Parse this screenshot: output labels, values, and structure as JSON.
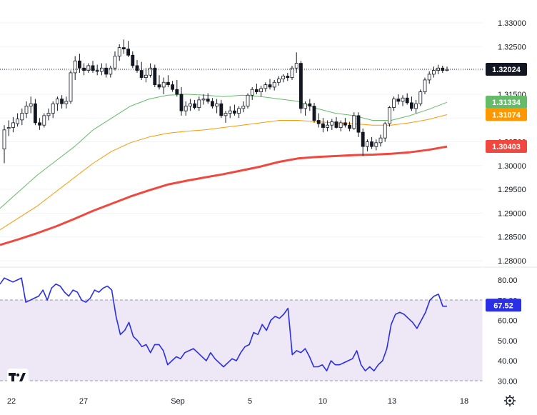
{
  "chart_data": [
    {
      "type": "candlestick",
      "panel": "price",
      "x": [
        "Aug 22",
        "Aug 27",
        "Sep 1",
        "Sep 5",
        "Sep 10",
        "Sep 13",
        "Sep 18"
      ],
      "x_tick_labels": [
        "22",
        "27",
        "Sep",
        "5",
        "10",
        "13",
        "18"
      ],
      "y_tick_labels": [
        "1.33000",
        "1.32500",
        "1.32000",
        "1.31500",
        "1.31000",
        "1.30500",
        "1.30000",
        "1.29500",
        "1.29000",
        "1.28500",
        "1.28000"
      ],
      "ylim": [
        1.2795,
        1.3325
      ],
      "last_price": 1.32024,
      "ohlc": [
        [
          1.3035,
          1.3085,
          1.3005,
          1.3075
        ],
        [
          1.3078,
          1.3095,
          1.3062,
          1.308
        ],
        [
          1.308,
          1.3102,
          1.307,
          1.309
        ],
        [
          1.3088,
          1.311,
          1.3082,
          1.3098
        ],
        [
          1.3096,
          1.312,
          1.3085,
          1.311
        ],
        [
          1.311,
          1.3135,
          1.31,
          1.3125
        ],
        [
          1.3125,
          1.3145,
          1.311,
          1.313
        ],
        [
          1.313,
          1.314,
          1.3085,
          1.309
        ],
        [
          1.309,
          1.31,
          1.3075,
          1.3085
        ],
        [
          1.3085,
          1.311,
          1.308,
          1.3105
        ],
        [
          1.3105,
          1.312,
          1.3095,
          1.311
        ],
        [
          1.311,
          1.3135,
          1.31,
          1.313
        ],
        [
          1.313,
          1.3145,
          1.3115,
          1.314
        ],
        [
          1.314,
          1.3148,
          1.312,
          1.313
        ],
        [
          1.313,
          1.3145,
          1.312,
          1.3135
        ],
        [
          1.3135,
          1.32,
          1.313,
          1.3195
        ],
        [
          1.3195,
          1.323,
          1.318,
          1.322
        ],
        [
          1.322,
          1.3235,
          1.3195,
          1.3205
        ],
        [
          1.3205,
          1.3215,
          1.319,
          1.32
        ],
        [
          1.32,
          1.3215,
          1.3195,
          1.321
        ],
        [
          1.321,
          1.322,
          1.3195,
          1.32
        ],
        [
          1.32,
          1.3212,
          1.319,
          1.3198
        ],
        [
          1.3198,
          1.3215,
          1.319,
          1.3205
        ],
        [
          1.3205,
          1.3215,
          1.3185,
          1.3192
        ],
        [
          1.3192,
          1.321,
          1.3185,
          1.3205
        ],
        [
          1.3205,
          1.324,
          1.32,
          1.323
        ],
        [
          1.323,
          1.3255,
          1.322,
          1.3248
        ],
        [
          1.3248,
          1.3265,
          1.3235,
          1.3245
        ],
        [
          1.3245,
          1.3262,
          1.3228,
          1.3232
        ],
        [
          1.3232,
          1.324,
          1.3205,
          1.321
        ],
        [
          1.321,
          1.3222,
          1.3195,
          1.32
        ],
        [
          1.32,
          1.3218,
          1.318,
          1.3185
        ],
        [
          1.3185,
          1.3205,
          1.3175,
          1.319
        ],
        [
          1.319,
          1.3215,
          1.3185,
          1.3205
        ],
        [
          1.3205,
          1.3212,
          1.3165,
          1.317
        ],
        [
          1.317,
          1.319,
          1.316,
          1.3165
        ],
        [
          1.3165,
          1.3185,
          1.315,
          1.3175
        ],
        [
          1.3175,
          1.319,
          1.3165,
          1.317
        ],
        [
          1.317,
          1.3178,
          1.3155,
          1.316
        ],
        [
          1.316,
          1.318,
          1.3145,
          1.315
        ],
        [
          1.315,
          1.3165,
          1.3105,
          1.3115
        ],
        [
          1.3115,
          1.3135,
          1.3105,
          1.3125
        ],
        [
          1.3125,
          1.314,
          1.3115,
          1.313
        ],
        [
          1.313,
          1.3138,
          1.3118,
          1.3122
        ],
        [
          1.3122,
          1.3145,
          1.3115,
          1.3138
        ],
        [
          1.3138,
          1.315,
          1.3128,
          1.314
        ],
        [
          1.314,
          1.3152,
          1.313,
          1.3135
        ],
        [
          1.3135,
          1.3142,
          1.312,
          1.3125
        ],
        [
          1.3125,
          1.314,
          1.311,
          1.313
        ],
        [
          1.313,
          1.3138,
          1.31,
          1.3105
        ],
        [
          1.3105,
          1.3115,
          1.309,
          1.311
        ],
        [
          1.311,
          1.3125,
          1.31,
          1.3115
        ],
        [
          1.3115,
          1.3128,
          1.3105,
          1.311
        ],
        [
          1.311,
          1.3125,
          1.31,
          1.312
        ],
        [
          1.312,
          1.3135,
          1.3112,
          1.3125
        ],
        [
          1.3125,
          1.3152,
          1.312,
          1.3148
        ],
        [
          1.3148,
          1.3165,
          1.3138,
          1.316
        ],
        [
          1.316,
          1.3172,
          1.315,
          1.3155
        ],
        [
          1.3155,
          1.3168,
          1.3145,
          1.3162
        ],
        [
          1.3162,
          1.3175,
          1.3155,
          1.317
        ],
        [
          1.317,
          1.3182,
          1.316,
          1.3165
        ],
        [
          1.3165,
          1.318,
          1.3158,
          1.3175
        ],
        [
          1.3175,
          1.3188,
          1.3168,
          1.3182
        ],
        [
          1.3182,
          1.3192,
          1.3175,
          1.3188
        ],
        [
          1.3188,
          1.3195,
          1.3178,
          1.3185
        ],
        [
          1.3185,
          1.321,
          1.318,
          1.3205
        ],
        [
          1.3205,
          1.3238,
          1.3195,
          1.3215
        ],
        [
          1.3215,
          1.322,
          1.311,
          1.312
        ],
        [
          1.312,
          1.3135,
          1.3105,
          1.313
        ],
        [
          1.313,
          1.314,
          1.3115,
          1.3125
        ],
        [
          1.3125,
          1.3132,
          1.309,
          1.3095
        ],
        [
          1.3095,
          1.311,
          1.308,
          1.3088
        ],
        [
          1.3088,
          1.31,
          1.307,
          1.308
        ],
        [
          1.308,
          1.3095,
          1.3072,
          1.3085
        ],
        [
          1.3085,
          1.3098,
          1.3075,
          1.3092
        ],
        [
          1.3092,
          1.3102,
          1.3078,
          1.308
        ],
        [
          1.308,
          1.3095,
          1.3072,
          1.309
        ],
        [
          1.309,
          1.31,
          1.308,
          1.3085
        ],
        [
          1.3085,
          1.3092,
          1.3072,
          1.3078
        ],
        [
          1.3078,
          1.3112,
          1.3075,
          1.3105
        ],
        [
          1.3105,
          1.3112,
          1.306,
          1.307
        ],
        [
          1.307,
          1.3078,
          1.302,
          1.304
        ],
        [
          1.304,
          1.3055,
          1.303,
          1.305
        ],
        [
          1.305,
          1.306,
          1.3035,
          1.304
        ],
        [
          1.304,
          1.3055,
          1.3032,
          1.3048
        ],
        [
          1.3048,
          1.3065,
          1.304,
          1.3058
        ],
        [
          1.3058,
          1.3092,
          1.305,
          1.3088
        ],
        [
          1.3088,
          1.3125,
          1.3082,
          1.3122
        ],
        [
          1.3122,
          1.3145,
          1.3115,
          1.314
        ],
        [
          1.314,
          1.315,
          1.3128,
          1.3135
        ],
        [
          1.3135,
          1.3148,
          1.3125,
          1.3142
        ],
        [
          1.3142,
          1.3152,
          1.3128,
          1.3132
        ],
        [
          1.3132,
          1.3145,
          1.3115,
          1.312
        ],
        [
          1.312,
          1.3138,
          1.311,
          1.313
        ],
        [
          1.313,
          1.316,
          1.3125,
          1.3155
        ],
        [
          1.3155,
          1.3185,
          1.315,
          1.318
        ],
        [
          1.318,
          1.3198,
          1.3172,
          1.3192
        ],
        [
          1.3192,
          1.3208,
          1.3185,
          1.32
        ],
        [
          1.32,
          1.3212,
          1.3192,
          1.3205
        ],
        [
          1.3205,
          1.321,
          1.3195,
          1.32
        ],
        [
          1.32,
          1.3208,
          1.3198,
          1.3202
        ]
      ],
      "moving_averages": [
        {
          "color": "#66bb6a",
          "last": 1.31334,
          "label": "1.31334",
          "values": [
            1.291,
            1.2945,
            1.298,
            1.301,
            1.304,
            1.3075,
            1.31,
            1.3125,
            1.314,
            1.3148,
            1.315,
            1.3148,
            1.3145,
            1.3148,
            1.3145,
            1.314,
            1.3135,
            1.312,
            1.311,
            1.3105,
            1.3095,
            1.3095,
            1.3105,
            1.3118,
            1.3133
          ]
        },
        {
          "color": "#ff9800",
          "last": 1.31074,
          "label": "1.31074",
          "values": [
            1.2865,
            1.289,
            1.2915,
            1.2945,
            1.2975,
            1.3005,
            1.303,
            1.3048,
            1.306,
            1.3068,
            1.3072,
            1.3075,
            1.308,
            1.3085,
            1.309,
            1.3095,
            1.3095,
            1.3092,
            1.309,
            1.3088,
            1.3085,
            1.3085,
            1.309,
            1.3097,
            1.3107
          ]
        },
        {
          "color": "#f0483e",
          "last": 1.30403,
          "label": "1.30403",
          "values": [
            1.2833,
            1.2845,
            1.2858,
            1.2872,
            1.2888,
            1.2905,
            1.292,
            1.2935,
            1.2948,
            1.296,
            1.2968,
            1.2975,
            1.2982,
            1.299,
            1.2998,
            1.3008,
            1.3015,
            1.3018,
            1.302,
            1.3022,
            1.3023,
            1.3025,
            1.3028,
            1.3033,
            1.304
          ]
        }
      ]
    },
    {
      "type": "line",
      "panel": "rsi",
      "y_tick_labels": [
        "80.00",
        "70.00",
        "60.00",
        "50.00",
        "40.00",
        "30.00"
      ],
      "ylim": [
        27,
        86
      ],
      "levels": [
        70,
        30
      ],
      "last_value": 67.52,
      "last_label": "67.52",
      "series": [
        {
          "color": "#2a2ee5",
          "values": [
            78,
            81,
            80,
            79,
            80,
            81,
            69,
            70,
            71,
            72,
            75,
            70,
            76,
            78,
            77,
            74,
            72,
            75,
            74,
            70,
            69,
            71,
            75,
            74,
            76,
            77,
            75,
            62,
            53,
            55,
            59,
            52,
            50,
            47,
            48,
            44,
            48,
            48,
            45,
            38,
            40,
            42,
            41,
            44,
            45,
            46,
            44,
            42,
            40,
            44,
            41,
            39,
            37,
            39,
            41,
            40,
            44,
            47,
            48,
            54,
            53,
            58,
            55,
            60,
            62,
            61,
            63,
            66,
            43,
            45,
            44,
            46,
            42,
            37,
            37,
            38,
            35,
            40,
            38,
            38,
            39,
            40,
            41,
            45,
            38,
            35,
            37,
            35,
            38,
            40,
            46,
            58,
            63,
            64,
            63,
            61,
            59,
            56,
            60,
            64,
            70,
            72,
            73,
            67,
            67
          ]
        }
      ]
    }
  ]
}
